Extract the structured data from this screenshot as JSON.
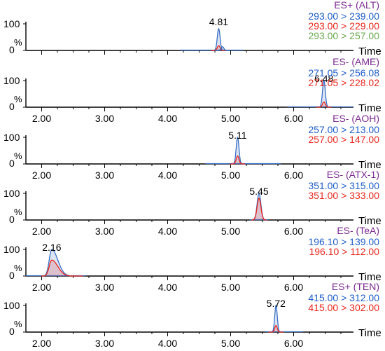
{
  "colors": {
    "axis": "#000000",
    "label_purple": "#7b2b90",
    "blue": "#1f5ec8",
    "trace_blue": "#3a6fc4",
    "red": "#e8271e",
    "green": "#6aa84f",
    "dark": "#333333"
  },
  "chart_data": [
    {
      "type": "line",
      "mode": "ES+ (ALT)",
      "transitions": [
        "293.00 > 239.00",
        "293.00 > 229.00",
        "293.00 > 257.00"
      ],
      "transition_colors": [
        "#1f5ec8",
        "#e8271e",
        "#6aa84f"
      ],
      "peak_label": "4.81",
      "peak_rt": 4.81,
      "peak_width": 0.022,
      "peaks": [
        {
          "rt": 4.81,
          "height": 82,
          "color": "#3a6fc4"
        },
        {
          "rt": 4.81,
          "height": 18,
          "color": "#e8271e"
        },
        {
          "rt": 4.87,
          "height": 14,
          "color": "#3a6fc4"
        }
      ],
      "baseline_range": [
        4.2,
        5.2
      ],
      "y_ticks": [
        "100",
        "0"
      ],
      "ylabel": "%",
      "xlabel": "Time",
      "xlim": [
        1.75,
        6.95
      ],
      "ylim": [
        0,
        100
      ],
      "x_ticks": []
    },
    {
      "type": "line",
      "mode": "ES- (AME)",
      "transitions": [
        "271.05 > 256.08",
        "271.05 > 228.02"
      ],
      "transition_colors": [
        "#1f5ec8",
        "#e8271e"
      ],
      "peak_label": "6.48",
      "peak_rt": 6.48,
      "peak_width": 0.022,
      "peaks": [
        {
          "rt": 6.48,
          "height": 100,
          "color": "#3a6fc4"
        },
        {
          "rt": 6.48,
          "height": 20,
          "color": "#e8271e"
        }
      ],
      "baseline_range": [
        5.9,
        6.95
      ],
      "y_ticks": [
        "100",
        "0"
      ],
      "ylabel": "%",
      "xlabel": "Time",
      "xlim": [
        1.75,
        6.95
      ],
      "ylim": [
        0,
        100
      ],
      "x_ticks": [
        "2.00",
        "3.00",
        "4.00",
        "5.00",
        "6.00"
      ]
    },
    {
      "type": "line",
      "mode": "ES- (AOH)",
      "transitions": [
        "257.00 > 213.00",
        "257.00 > 147.00"
      ],
      "transition_colors": [
        "#1f5ec8",
        "#e8271e"
      ],
      "peak_label": "5.11",
      "peak_rt": 5.11,
      "peak_width": 0.022,
      "peaks": [
        {
          "rt": 5.11,
          "height": 100,
          "color": "#3a6fc4"
        },
        {
          "rt": 5.11,
          "height": 30,
          "color": "#e8271e"
        }
      ],
      "baseline_range": [
        4.6,
        5.8
      ],
      "y_ticks": [
        "100",
        "0"
      ],
      "ylabel": "%",
      "xlabel": "Time",
      "xlim": [
        1.75,
        6.95
      ],
      "ylim": [
        0,
        100
      ],
      "x_ticks": [
        "2.00",
        "3.00",
        "4.00",
        "5.00",
        "6.00"
      ]
    },
    {
      "type": "line",
      "mode": "ES- (ATX-1)",
      "transitions": [
        "351.00 > 315.00",
        "351.00 > 333.00"
      ],
      "transition_colors": [
        "#1f5ec8",
        "#e8271e"
      ],
      "peak_label": "5.45",
      "peak_rt": 5.45,
      "peak_width": 0.03,
      "peaks": [
        {
          "rt": 5.45,
          "height": 100,
          "color": "#3a6fc4"
        },
        {
          "rt": 5.45,
          "height": 82,
          "color": "#e8271e"
        }
      ],
      "baseline_range": [
        5.3,
        5.6
      ],
      "y_ticks": [
        "100",
        "0"
      ],
      "ylabel": "%",
      "xlabel": "Time",
      "xlim": [
        1.75,
        6.95
      ],
      "ylim": [
        0,
        100
      ],
      "x_ticks": [
        "2.00",
        "3.00",
        "4.00",
        "5.00",
        "6.00"
      ]
    },
    {
      "type": "line",
      "mode": "ES- (TeA)",
      "transitions": [
        "196.10 > 139.00",
        "196.10 > 112.00"
      ],
      "transition_colors": [
        "#1f5ec8",
        "#e8271e"
      ],
      "peak_label": "2.16",
      "peak_rt": 2.16,
      "peak_width": 0.04,
      "tail": true,
      "peaks": [
        {
          "rt": 2.16,
          "height": 100,
          "color": "#3a6fc4"
        },
        {
          "rt": 2.16,
          "height": 60,
          "color": "#e8271e"
        }
      ],
      "baseline_range": [
        1.75,
        2.7
      ],
      "y_ticks": [
        "100",
        "0"
      ],
      "ylabel": "%",
      "xlabel": "Time",
      "xlim": [
        1.75,
        6.95
      ],
      "ylim": [
        0,
        100
      ],
      "x_ticks": [
        "2.00",
        "3.00",
        "4.00",
        "5.00",
        "6.00"
      ]
    },
    {
      "type": "line",
      "mode": "ES+ (TEN)",
      "transitions": [
        "415.00 > 312.00",
        "415.00 > 302.00"
      ],
      "transition_colors": [
        "#1f5ec8",
        "#e8271e"
      ],
      "peak_label": "5.72",
      "peak_rt": 5.72,
      "peak_width": 0.02,
      "peaks": [
        {
          "rt": 5.72,
          "height": 100,
          "color": "#3a6fc4"
        },
        {
          "rt": 5.72,
          "height": 25,
          "color": "#e8271e"
        }
      ],
      "baseline_range": [
        5.55,
        6.15
      ],
      "y_ticks": [
        "100",
        "0"
      ],
      "ylabel": "%",
      "xlabel": "Time",
      "xlim": [
        1.75,
        6.95
      ],
      "ylim": [
        0,
        100
      ],
      "x_ticks": [
        "2.00",
        "3.00",
        "4.00",
        "5.00",
        "6.00"
      ]
    }
  ]
}
